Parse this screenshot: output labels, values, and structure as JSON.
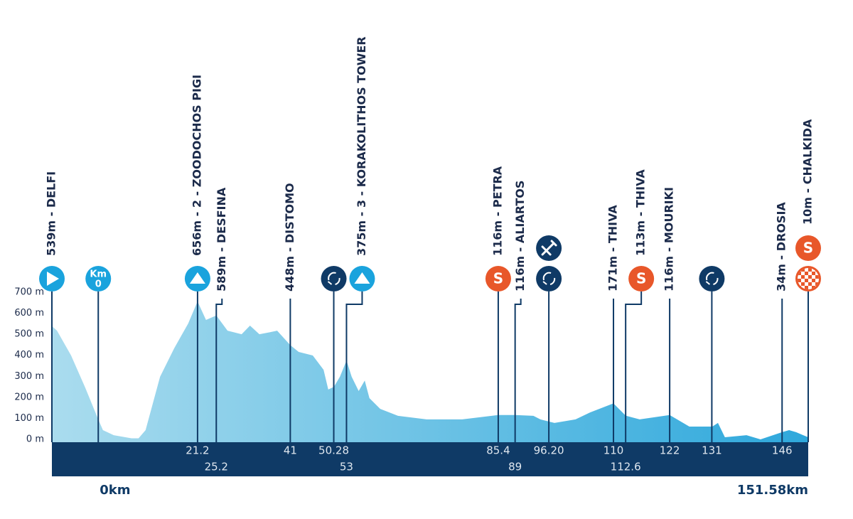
{
  "chart_data": {
    "type": "area",
    "x": [
      -9.9,
      -8.8,
      -5.8,
      -2.8,
      0,
      1,
      3.3,
      7.1,
      8.6,
      10.1,
      13.2,
      16.2,
      19.2,
      21.2,
      23,
      25.2,
      27.6,
      30.6,
      32.4,
      34.4,
      36.7,
      38.2,
      41,
      42.8,
      45.8,
      48.1,
      49.1,
      50.3,
      51.6,
      53,
      54.1,
      55.6,
      56.9,
      57.9,
      60.2,
      64,
      70.1,
      77.7,
      85.4,
      89,
      92.9,
      94.4,
      97.4,
      101.9,
      105,
      110,
      112.6,
      115.6,
      122,
      126.2,
      131.1,
      132.3,
      133.8,
      138.4,
      141.4,
      146,
      147.5,
      149,
      150.5,
      151.58
    ],
    "values": [
      539,
      517,
      399,
      247,
      95,
      44,
      20,
      5,
      5,
      44,
      298,
      433,
      551,
      656,
      568,
      589,
      517,
      500,
      541,
      500,
      510,
      517,
      448,
      416,
      399,
      331,
      237,
      250,
      298,
      375,
      298,
      230,
      280,
      196,
      145,
      112,
      95,
      95,
      116,
      116,
      112,
      95,
      78,
      95,
      128,
      171,
      113,
      95,
      116,
      61,
      61,
      78,
      10,
      20,
      0,
      34,
      44,
      34,
      20,
      10
    ],
    "color": [
      "#aadcee",
      "#2ea8dc"
    ],
    "xlim": [
      -9.9,
      151.58
    ],
    "xticks": [
      {
        "value": 0,
        "label": "0km"
      },
      {
        "value": 151.58,
        "label": "151.58km"
      }
    ],
    "ylim": [
      0,
      700
    ],
    "yticks": [
      {
        "value": 0,
        "label": "0 m"
      },
      {
        "value": 100,
        "label": "100 m"
      },
      {
        "value": 200,
        "label": "200 m"
      },
      {
        "value": 300,
        "label": "300 m"
      },
      {
        "value": 400,
        "label": "400 m"
      },
      {
        "value": 500,
        "label": "500 m"
      },
      {
        "value": 600,
        "label": "600 m"
      },
      {
        "value": 700,
        "label": "700 m"
      }
    ],
    "grid": false,
    "km_symbol": "Km",
    "sprint_symbol": "S",
    "waypoints": [
      {
        "label": "539m - DELFI",
        "icons": [
          "start"
        ],
        "row": 0,
        "emphasis": true
      },
      {
        "km": 0,
        "icons": [
          "km0"
        ],
        "row": 0
      },
      {
        "km": 21.2,
        "label": "656m - 2 - ZOODOCHOS PIGI",
        "icons": [
          "climb"
        ],
        "row": 0
      },
      {
        "km": 25.2,
        "label": "589m - DESFINA",
        "icons": [],
        "row": 1
      },
      {
        "km": 41,
        "label": "448m - DISTOMO",
        "icons": [],
        "row": 0
      },
      {
        "km": 50.28,
        "icons": [
          "waste"
        ],
        "row": 0
      },
      {
        "km": 53,
        "label": "375m - 3 - KORAKOLITHOS TOWER",
        "icons": [
          "climb"
        ],
        "row": 1
      },
      {
        "km": 85.4,
        "label": "116m - PETRA",
        "icons": [
          "sprint"
        ],
        "row": 0
      },
      {
        "km": 89,
        "label": "116m - ALIARTOS",
        "icons": [],
        "row": 1
      },
      {
        "km": {
          "value": 96.2,
          "label": "96.20"
        },
        "icons": [
          "waste",
          "feed"
        ],
        "row": 0
      },
      {
        "km": 110,
        "label": "171m - THIVA",
        "icons": [],
        "row": 0
      },
      {
        "km": 112.6,
        "label": "113m - THIVA",
        "icons": [
          "sprint"
        ],
        "row": 1
      },
      {
        "km": 122,
        "label": "116m - MOURIKI",
        "icons": [],
        "row": 0
      },
      {
        "km": 131,
        "icons": [
          "waste"
        ],
        "row": 0
      },
      {
        "km": 146,
        "label": "34m - DROSIA",
        "icons": [],
        "row": 0
      },
      {
        "label": "10m - CHALKIDA",
        "icons": [
          "finish",
          "sprint"
        ],
        "row": 0,
        "emphasis": true
      }
    ]
  }
}
